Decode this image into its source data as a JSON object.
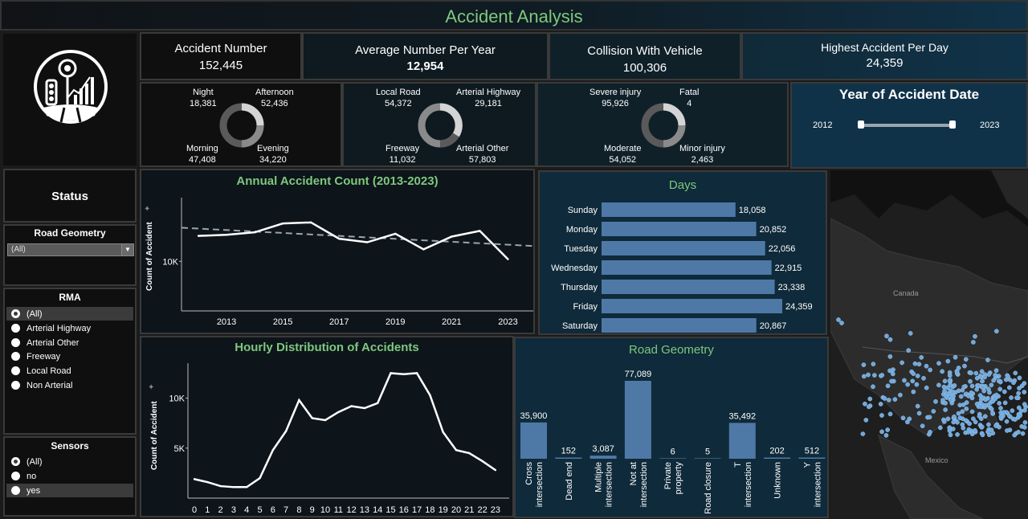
{
  "title": "Accident Analysis",
  "kpis": [
    {
      "label": "Accident Number",
      "value": "152,445"
    },
    {
      "label": "Average Number Per Year",
      "value": "12,954"
    },
    {
      "label": "Collision With Vehicle",
      "value": "100,306"
    },
    {
      "label": "Highest Accident Per Day",
      "value": "24,359"
    }
  ],
  "donuts": {
    "time": {
      "a": {
        "label": "Night",
        "value": "18,381"
      },
      "b": {
        "label": "Afternoon",
        "value": "52,436"
      },
      "c": {
        "label": "Morning",
        "value": "47,408"
      },
      "d": {
        "label": "Evening",
        "value": "34,220"
      }
    },
    "road": {
      "a": {
        "label": "Local Road",
        "value": "54,372"
      },
      "b": {
        "label": "Arterial Highway",
        "value": "29,181"
      },
      "c": {
        "label": "Freeway",
        "value": "11,032"
      },
      "d": {
        "label": "Arterial Other",
        "value": "57,803"
      }
    },
    "injury": {
      "a": {
        "label": "Severe injury",
        "value": "95,926"
      },
      "b": {
        "label": "Fatal",
        "value": "4"
      },
      "c": {
        "label": "Moderate",
        "value": "54,052"
      },
      "d": {
        "label": "Minor injury",
        "value": "2,463"
      }
    }
  },
  "year_filter": {
    "title": "Year of Accident Date",
    "min": "2012",
    "max": "2023"
  },
  "status": {
    "title": "Status"
  },
  "road_geometry_filter": {
    "title": "Road Geometry",
    "selected": "(All)"
  },
  "rma": {
    "title": "RMA",
    "options": [
      "(All)",
      "Arterial Highway",
      "Arterial Other",
      "Freeway",
      "Local Road",
      "Non Arterial"
    ]
  },
  "sensors": {
    "title": "Sensors",
    "options": [
      "(All)",
      "no",
      "yes"
    ]
  },
  "map": {
    "labels": {
      "canada": "Canada",
      "mexico": "Mexico"
    }
  },
  "colors": {
    "bar": "#4e79a7",
    "title_green": "#7ec87e",
    "donut_light": "#d4d4d4",
    "donut_mid": "#8a8a8a",
    "donut_dark": "#5a5a5a"
  },
  "chart_data": [
    {
      "type": "line",
      "title": "Annual Accident Count (2013-2023)",
      "ylabel": "Count of Accident",
      "xlabel": "",
      "x": [
        2012,
        2013,
        2014,
        2015,
        2016,
        2017,
        2018,
        2019,
        2020,
        2021,
        2022,
        2023
      ],
      "x_ticks": [
        "2013",
        "2015",
        "2017",
        "2019",
        "2021",
        "2023"
      ],
      "y_ticks": [
        "10K"
      ],
      "values": [
        13600,
        13750,
        14100,
        15350,
        15500,
        13200,
        12700,
        13900,
        11700,
        13500,
        14300,
        10300
      ],
      "ylim": [
        3000,
        19000
      ],
      "trend_line": true
    },
    {
      "type": "bar",
      "title": "Days",
      "categories": [
        "Sunday",
        "Monday",
        "Tuesday",
        "Wednesday",
        "Thursday",
        "Friday",
        "Saturday"
      ],
      "values": [
        18058,
        20852,
        22056,
        22915,
        23338,
        24359,
        20867
      ],
      "labels": [
        "18,058",
        "20,852",
        "22,056",
        "22,915",
        "23,338",
        "24,359",
        "20,867"
      ],
      "orientation": "horizontal"
    },
    {
      "type": "line",
      "title": "Hourly Distribution of Accidents",
      "ylabel": "Count of Accident",
      "xlabel": "",
      "x": [
        0,
        1,
        2,
        3,
        4,
        5,
        6,
        7,
        8,
        9,
        10,
        11,
        12,
        13,
        14,
        15,
        16,
        17,
        18,
        19,
        20,
        21,
        22,
        23
      ],
      "y_ticks": [
        "5K",
        "10K"
      ],
      "values": [
        1900,
        1600,
        1200,
        1100,
        1100,
        2000,
        4800,
        6700,
        9800,
        8000,
        7800,
        8600,
        9200,
        9000,
        9500,
        12500,
        12400,
        12500,
        10300,
        6600,
        4800,
        4500,
        3700,
        2800
      ],
      "ylim": [
        0,
        13500
      ]
    },
    {
      "type": "bar",
      "title": "Road Geometry",
      "categories": [
        "Cross intersection",
        "Dead end",
        "Multiple intersection",
        "Not at intersection",
        "Private property",
        "Road closure",
        "T intersection",
        "Unknown",
        "Y intersection"
      ],
      "category_lines": [
        [
          "Cross",
          "intersection"
        ],
        [
          "Dead end"
        ],
        [
          "Multiple",
          "intersection"
        ],
        [
          "Not at",
          "intersection"
        ],
        [
          "Private",
          "property"
        ],
        [
          "Road closure"
        ],
        [
          "T",
          "intersection"
        ],
        [
          "Unknown"
        ],
        [
          "Y",
          "intersection"
        ]
      ],
      "values": [
        35900,
        152,
        3087,
        77089,
        6,
        5,
        35492,
        202,
        512
      ],
      "labels": [
        "35,900",
        "152",
        "3,087",
        "77,089",
        "6",
        "5",
        "35,492",
        "202",
        "512"
      ]
    }
  ]
}
